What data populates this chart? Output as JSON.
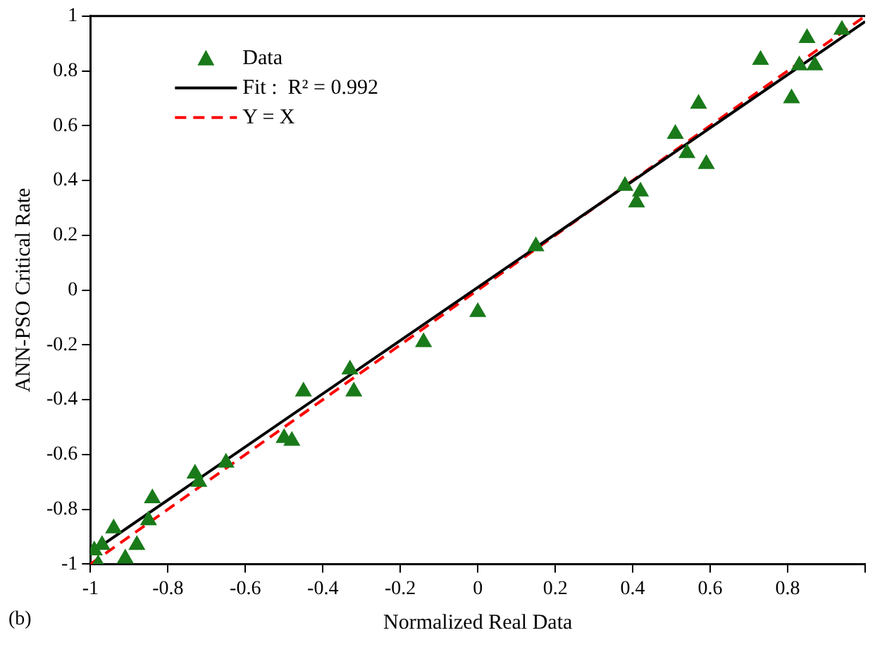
{
  "chart_data": {
    "type": "scatter",
    "xlabel": "Normalized Real Data",
    "ylabel": "ANN-PSO Critical Rate",
    "annotations": [
      "(b)"
    ],
    "xlim": [
      -1,
      1
    ],
    "xticks": [
      -1,
      -0.8,
      -0.6,
      -0.4,
      -0.2,
      0,
      0.2,
      0.4,
      0.6,
      0.8,
      {
        "value": 1,
        "label": null
      }
    ],
    "ylim": [
      -1,
      1
    ],
    "yticks": [
      -1,
      -0.8,
      -0.6,
      -0.4,
      -0.2,
      0,
      0.2,
      0.4,
      0.6,
      0.8,
      1
    ],
    "grid": false,
    "legend": "top left",
    "series": [
      {
        "name": "Data",
        "type": "scatter",
        "marker": "triangle",
        "color": "#1a7a1a",
        "x": [
          -0.99,
          -0.98,
          -0.97,
          -0.94,
          -0.91,
          -0.88,
          -0.85,
          -0.84,
          -0.73,
          -0.72,
          -0.65,
          -0.5,
          -0.48,
          -0.45,
          -0.33,
          -0.32,
          -0.14,
          0,
          0.15,
          0.38,
          0.41,
          0.42,
          0.51,
          0.54,
          0.57,
          0.59,
          0.73,
          0.81,
          0.83,
          0.85,
          0.87,
          0.94
        ],
        "values": [
          -0.95,
          -1,
          -0.93,
          -0.87,
          -0.98,
          -0.93,
          -0.84,
          -0.76,
          -0.67,
          -0.7,
          -0.63,
          -0.54,
          -0.55,
          -0.37,
          -0.29,
          -0.37,
          -0.19,
          -0.08,
          0.16,
          0.38,
          0.32,
          0.36,
          0.57,
          0.5,
          0.68,
          0.46,
          0.84,
          0.7,
          0.82,
          0.92,
          0.82,
          0.95
        ]
      },
      {
        "name": "Fit :  R² = 0.992",
        "type": "line",
        "marker": "none",
        "color": "#000000",
        "line_style": "solid",
        "x": [
          -1,
          1
        ],
        "values": [
          -0.96,
          0.98
        ]
      },
      {
        "name": "Y = X",
        "type": "line",
        "marker": "none",
        "color": "#ff0000",
        "line_style": "dashed",
        "x": [
          -1,
          1
        ],
        "values": [
          -1,
          1
        ]
      }
    ]
  }
}
